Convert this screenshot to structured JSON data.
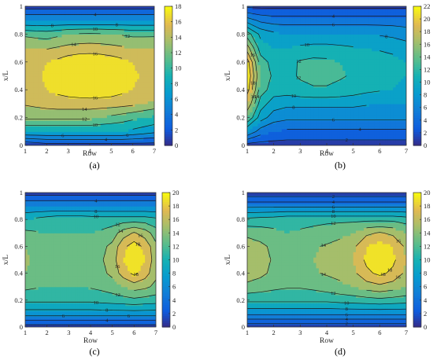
{
  "chart_data": [
    {
      "panel": "(a)",
      "type": "contour",
      "xlabel": "Row",
      "ylabel": "x/L",
      "xlim": [
        1,
        7
      ],
      "ylim": [
        0,
        1
      ],
      "xticks": [
        "1",
        "2",
        "3",
        "4",
        "5",
        "6",
        "7"
      ],
      "yticks": [
        "0",
        "0.2",
        "0.4",
        "0.6",
        "0.8",
        "1"
      ],
      "colorbar": {
        "min": 0,
        "max": 18,
        "ticks": [
          "0",
          "2",
          "4",
          "6",
          "8",
          "10",
          "12",
          "14",
          "16",
          "18"
        ]
      },
      "contour_levels": [
        2,
        4,
        6,
        8,
        10,
        12,
        14,
        16
      ],
      "field": {
        "gx": [
          1,
          1.5,
          2,
          2.5,
          3,
          3.5,
          4,
          4.5,
          5,
          5.5,
          6,
          6.5,
          7
        ],
        "gy": [
          0,
          0.1,
          0.2,
          0.3,
          0.4,
          0.5,
          0.6,
          0.7,
          0.8,
          0.9,
          1
        ],
        "z": [
          [
            0,
            0.5,
            1,
            1,
            1,
            1,
            1,
            1,
            1,
            1,
            1,
            1,
            1
          ],
          [
            8,
            8,
            8,
            8,
            8,
            8,
            8,
            8,
            8,
            8,
            7.5,
            7,
            6.5
          ],
          [
            12.5,
            12.5,
            12.5,
            12.5,
            12.5,
            12.5,
            12.5,
            12,
            11.5,
            11,
            10.5,
            10,
            9.5
          ],
          [
            14.2,
            14.5,
            14.8,
            15,
            15,
            15,
            15,
            15,
            15,
            14.8,
            14.5,
            14,
            13.5
          ],
          [
            15.2,
            15.6,
            16,
            16.5,
            17,
            17.3,
            17.5,
            17.3,
            17,
            16.5,
            16,
            15.5,
            15.2
          ],
          [
            15.5,
            15.8,
            16.2,
            16.8,
            17.5,
            18,
            18.2,
            18,
            17.6,
            17,
            16.3,
            15.8,
            15.5
          ],
          [
            15.2,
            15.5,
            16,
            16.5,
            17.2,
            17.6,
            17.7,
            17.5,
            17.1,
            16.6,
            16,
            15.5,
            15.2
          ],
          [
            14.2,
            14,
            13.8,
            14.2,
            14.6,
            14.8,
            14.9,
            14.8,
            14.6,
            14.3,
            14,
            14,
            14.2
          ],
          [
            11.5,
            11.2,
            11,
            11.5,
            12,
            12.2,
            12.3,
            12.2,
            12,
            11.8,
            11.5,
            11.5,
            11.5
          ],
          [
            6,
            6,
            6,
            6,
            6,
            6,
            6,
            6,
            6,
            6,
            6,
            6,
            6
          ],
          [
            1,
            1,
            1,
            1,
            1,
            1,
            1,
            1,
            1,
            1,
            1,
            1,
            1
          ]
        ]
      }
    },
    {
      "panel": "(b)",
      "type": "contour",
      "xlabel": "Row",
      "ylabel": "x/L",
      "xlim": [
        1,
        7
      ],
      "ylim": [
        0,
        1
      ],
      "xticks": [
        "1",
        "2",
        "3",
        "4",
        "5",
        "6",
        "7"
      ],
      "yticks": [
        "0",
        "0.2",
        "0.4",
        "0.6",
        "0.8",
        "1"
      ],
      "colorbar": {
        "min": 0,
        "max": 22,
        "ticks": [
          "0",
          "2",
          "4",
          "6",
          "8",
          "10",
          "12",
          "14",
          "16",
          "18",
          "20",
          "22"
        ]
      },
      "contour_levels": [
        2,
        4,
        6,
        8,
        10,
        12,
        14,
        16,
        18,
        20
      ],
      "field": {
        "gx": [
          1,
          1.5,
          2,
          2.5,
          3,
          3.5,
          4,
          4.5,
          5,
          5.5,
          6,
          6.5,
          7
        ],
        "gy": [
          0,
          0.1,
          0.2,
          0.3,
          0.4,
          0.5,
          0.6,
          0.7,
          0.8,
          0.9,
          1
        ],
        "z": [
          [
            1,
            1,
            1,
            1,
            1,
            1,
            1,
            1,
            1,
            1,
            1,
            1,
            1
          ],
          [
            8,
            5,
            4,
            3.5,
            3.5,
            3.5,
            3.5,
            3.5,
            3.5,
            3.5,
            3.5,
            3.5,
            3.5
          ],
          [
            14,
            9,
            7,
            6.5,
            6.5,
            6.5,
            6.5,
            6.5,
            6.5,
            6.5,
            6.5,
            6.5,
            6.5
          ],
          [
            18,
            11,
            9,
            8.5,
            8.5,
            8.5,
            8.5,
            8.5,
            8.5,
            8.2,
            8,
            8,
            8
          ],
          [
            21,
            13,
            11,
            11,
            11.5,
            11.8,
            11.8,
            11.5,
            11,
            10.5,
            10.2,
            10,
            9.5
          ],
          [
            22,
            14,
            11.5,
            11.5,
            12.2,
            12.5,
            12.5,
            12.2,
            11.8,
            11.2,
            10.8,
            10.5,
            10
          ],
          [
            21,
            13,
            11.2,
            11.3,
            12.2,
            12.5,
            12.4,
            12,
            11.5,
            11,
            10.8,
            10.6,
            10
          ],
          [
            17,
            11,
            10,
            10,
            10.5,
            10.8,
            10.8,
            10.5,
            10.2,
            10,
            9.8,
            9.5,
            9
          ],
          [
            13,
            9.5,
            8.5,
            8,
            8,
            8,
            8,
            8,
            8,
            8,
            7.8,
            7.5,
            7
          ],
          [
            7,
            5.5,
            5,
            5,
            5,
            5,
            5,
            5,
            5,
            5,
            5,
            5,
            5
          ],
          [
            1.5,
            1.5,
            1.5,
            1.5,
            1.5,
            1.5,
            1.5,
            1.5,
            1.5,
            1.5,
            1.5,
            1.5,
            1.5
          ]
        ]
      }
    },
    {
      "panel": "(c)",
      "type": "contour",
      "xlabel": "Row",
      "ylabel": "x/L",
      "xlim": [
        1,
        7
      ],
      "ylim": [
        0,
        1
      ],
      "xticks": [
        "1",
        "2",
        "3",
        "4",
        "5",
        "6",
        "7"
      ],
      "yticks": [
        "0",
        "0.2",
        "0.4",
        "0.6",
        "0.8",
        "1"
      ],
      "colorbar": {
        "min": 0,
        "max": 20,
        "ticks": [
          "0",
          "2",
          "4",
          "6",
          "8",
          "10",
          "12",
          "14",
          "16",
          "18",
          "20"
        ]
      },
      "contour_levels": [
        2,
        4,
        6,
        8,
        10,
        12,
        14,
        16,
        18
      ],
      "field": {
        "gx": [
          1,
          1.5,
          2,
          2.5,
          3,
          3.5,
          4,
          4.5,
          5,
          5.5,
          6,
          6.5,
          7
        ],
        "gy": [
          0,
          0.1,
          0.2,
          0.3,
          0.4,
          0.5,
          0.6,
          0.7,
          0.8,
          0.9,
          1
        ],
        "z": [
          [
            1,
            1,
            1,
            1,
            1,
            1,
            1,
            1,
            1,
            1,
            1,
            1,
            1
          ],
          [
            7,
            7,
            7,
            7,
            7,
            7,
            7,
            7,
            7,
            7,
            7,
            7,
            7
          ],
          [
            10.5,
            10.5,
            10.5,
            10.5,
            10.5,
            10.5,
            10.5,
            10.8,
            11,
            11.2,
            11.5,
            11.2,
            11
          ],
          [
            12.5,
            12.2,
            12,
            12,
            12,
            12,
            12.2,
            12.5,
            13,
            14,
            15,
            14.5,
            13.5
          ],
          [
            14,
            13.2,
            13,
            13,
            13,
            13,
            13.2,
            13.5,
            14.5,
            17,
            18.5,
            17,
            14.5
          ],
          [
            14.5,
            13.5,
            13.2,
            13.2,
            13.2,
            13.2,
            13.4,
            13.8,
            15,
            18,
            19.5,
            18,
            14.8
          ],
          [
            14,
            13.2,
            13,
            13,
            13,
            13,
            13.2,
            13.5,
            14.5,
            17.5,
            19,
            17.5,
            14.5
          ],
          [
            12.5,
            12.2,
            12,
            12,
            12,
            12,
            12,
            12.3,
            13,
            15,
            16.2,
            15,
            13
          ],
          [
            10,
            10.5,
            11,
            11.5,
            11.5,
            11.5,
            11.2,
            11,
            11,
            11,
            11,
            11,
            10.5
          ],
          [
            6,
            6,
            6,
            6,
            6,
            6,
            6,
            6,
            6,
            6,
            6,
            6,
            6
          ],
          [
            1,
            1,
            1,
            1,
            1,
            1,
            1,
            1,
            1,
            1,
            1,
            1,
            1
          ]
        ]
      }
    },
    {
      "panel": "(d)",
      "type": "contour",
      "xlabel": "Row",
      "ylabel": "x/L",
      "xlim": [
        1,
        7
      ],
      "ylim": [
        0,
        1
      ],
      "xticks": [
        "1",
        "2",
        "3",
        "4",
        "5",
        "6",
        "7"
      ],
      "yticks": [
        "0",
        "0.2",
        "0.4",
        "0.6",
        "0.8",
        "1"
      ],
      "colorbar": {
        "min": 0,
        "max": 20,
        "ticks": [
          "0",
          "2",
          "4",
          "6",
          "8",
          "10",
          "12",
          "14",
          "16",
          "18",
          "20"
        ]
      },
      "contour_levels": [
        2,
        4,
        6,
        8,
        10,
        12,
        14,
        16,
        18
      ],
      "field": {
        "gx": [
          1,
          1.5,
          2,
          2.5,
          3,
          3.5,
          4,
          4.5,
          5,
          5.5,
          6,
          6.5,
          7
        ],
        "gy": [
          0,
          0.1,
          0.2,
          0.3,
          0.4,
          0.5,
          0.6,
          0.7,
          0.8,
          0.9,
          1
        ],
        "z": [
          [
            0.5,
            0.5,
            0.5,
            0.5,
            0.5,
            0.5,
            0.5,
            0.5,
            0.5,
            0.5,
            0.5,
            0.5,
            0.5
          ],
          [
            6.5,
            6.5,
            6.5,
            6.5,
            6.5,
            6.5,
            6.5,
            6.5,
            6.5,
            6.5,
            6.5,
            6.5,
            6.5
          ],
          [
            10.5,
            10.5,
            10.5,
            10.5,
            10.5,
            10.5,
            10.5,
            10.8,
            11,
            11.2,
            11.5,
            11.2,
            11
          ],
          [
            13.5,
            13,
            12.5,
            12.2,
            12.2,
            12.5,
            13,
            13.5,
            14,
            15,
            15.5,
            15,
            14
          ],
          [
            15,
            14.5,
            13.5,
            13,
            13.2,
            13.8,
            14.2,
            14.6,
            15.5,
            17.5,
            18.5,
            17.5,
            15.5
          ],
          [
            15.2,
            14.7,
            13.8,
            13.2,
            13.5,
            14,
            14.4,
            14.8,
            16,
            18.5,
            19.6,
            18.5,
            16
          ],
          [
            15,
            14.5,
            13.5,
            13,
            13.2,
            13.8,
            14.2,
            14.6,
            15.5,
            18,
            19,
            18,
            15.5
          ],
          [
            13.5,
            13,
            12.5,
            12,
            12.2,
            12.5,
            13,
            13.5,
            14,
            15.5,
            16.2,
            15.5,
            14
          ],
          [
            10.5,
            10.8,
            11,
            11.5,
            11.5,
            11.5,
            11.5,
            11.5,
            11.5,
            11.5,
            11.5,
            11.5,
            11
          ],
          [
            5.5,
            5.5,
            5.5,
            5.5,
            5.5,
            5.5,
            5.5,
            5.5,
            5.5,
            5.5,
            5.5,
            5.5,
            5.5
          ],
          [
            0.5,
            0.5,
            0.5,
            0.5,
            0.5,
            0.5,
            0.5,
            0.5,
            0.5,
            0.5,
            0.5,
            0.5,
            0.5
          ]
        ]
      }
    }
  ]
}
